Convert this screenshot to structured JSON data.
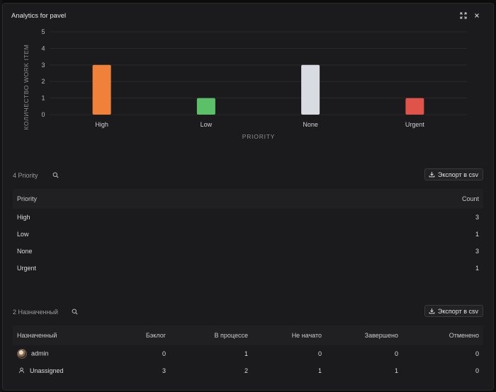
{
  "modal": {
    "title": "Analytics for pavel"
  },
  "chart_data": {
    "type": "bar",
    "categories": [
      "High",
      "Low",
      "None",
      "Urgent"
    ],
    "values": [
      3,
      1,
      3,
      1
    ],
    "colors": [
      "#f0813a",
      "#5cc068",
      "#d8dbe2",
      "#e0534b"
    ],
    "xlabel": "PRIORITY",
    "ylabel": "КОЛИЧЕСТВО WORK ITEM",
    "ylim": [
      0,
      5
    ],
    "yticks": [
      0,
      1,
      2,
      3,
      4,
      5
    ],
    "grid": true
  },
  "priority_section": {
    "count_label": "4 Priority",
    "export_label": "Экспорт в csv",
    "columns": [
      "Priority",
      "Count"
    ],
    "rows": [
      {
        "priority": "High",
        "count": "3"
      },
      {
        "priority": "Low",
        "count": "1"
      },
      {
        "priority": "None",
        "count": "3"
      },
      {
        "priority": "Urgent",
        "count": "1"
      }
    ]
  },
  "assignee_section": {
    "count_label": "2 Назначенный",
    "export_label": "Экспорт в csv",
    "columns": [
      "Назначенный",
      "Бэклог",
      "В процессе",
      "Не начато",
      "Завершено",
      "Отменено"
    ],
    "rows": [
      {
        "name": "admin",
        "icon": "avatar",
        "backlog": "0",
        "in_progress": "1",
        "not_started": "0",
        "done": "0",
        "cancelled": "0"
      },
      {
        "name": "Unassigned",
        "icon": "user-icon",
        "backlog": "3",
        "in_progress": "2",
        "not_started": "1",
        "done": "1",
        "cancelled": "0"
      }
    ]
  }
}
